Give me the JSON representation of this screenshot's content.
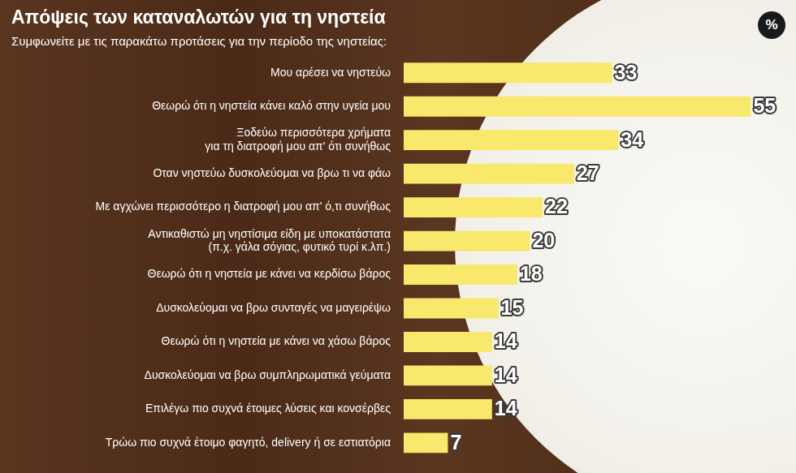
{
  "chart_data": {
    "type": "bar",
    "orientation": "horizontal",
    "title": "Απόψεις των καταναλωτών για τη νηστεία",
    "subtitle": "Συμφωνείτε με τις παρακάτω προτάσεις για την περίοδο της νηστείας:",
    "xlabel": "%",
    "categories": [
      "Μου αρέσει να νηστεύω",
      "Θεωρώ ότι η νηστεία κάνει καλό στην υγεία μου",
      "Ξοδεύω περισσότερα χρήματα\nγια τη διατροφή μου απ' ότι συνήθως",
      "Οταν νηστεύω δυσκολεύομαι να βρω τι να φάω",
      "Με αγχώνει περισσότερο η διατροφή μου απ' ό,τι συνήθως",
      "Αντικαθιστώ μη νηστίσιμα είδη με υποκατάστατα\n(π.χ. γάλα σόγιας, φυτικό τυρί κ.λπ.)",
      "Θεωρώ ότι η νηστεία με κάνει να κερδίσω βάρος",
      "Δυσκολεύομαι να βρω συνταγές να μαγειρέψω",
      "Θεωρώ ότι η νηστεία με κάνει να χάσω βάρος",
      "Δυσκολεύομαι να βρω συμπληρωματικά γεύματα",
      "Επιλέγω πιο συχνά έτοιμες λύσεις και κονσέρβες",
      "Τρώω πιο συχνά έτοιμο φαγητό, delivery ή σε εστιατόρια"
    ],
    "values": [
      33,
      55,
      34,
      27,
      22,
      20,
      18,
      15,
      14,
      14,
      14,
      7
    ],
    "color": "#f8e86b",
    "xlim": [
      0,
      57
    ],
    "grid": false,
    "data_labels": true,
    "tick_labels": "y"
  }
}
